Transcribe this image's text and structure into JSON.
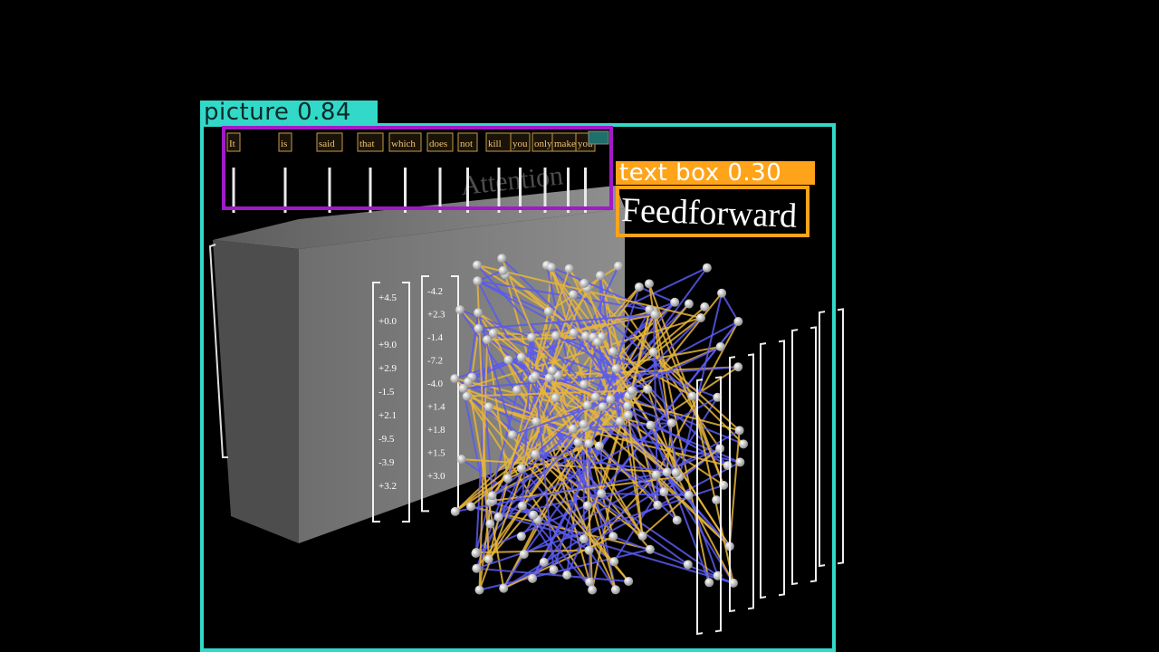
{
  "detections": [
    {
      "label": "picture 0.84",
      "color": "#32d9c8"
    },
    {
      "label": "text box 0.30",
      "color": "#ffa41a"
    }
  ],
  "scene": {
    "tokens": [
      "It",
      "is",
      "said",
      "that",
      "which",
      "does",
      "not",
      "kill",
      "you",
      "only",
      "makes",
      "you"
    ],
    "attention_label": "Attention",
    "feedforward_label": "Feedforward",
    "vector_values": [
      "+4.5",
      "+0.0",
      "+9.0",
      "+2.9",
      "-1.5",
      "+2.1",
      "-9.5",
      "-3.9",
      "+3.2"
    ],
    "vector_values_2": [
      "-4.2",
      "+2.3",
      "-1.4",
      "-7.2",
      "-4.0",
      "+1.4",
      "+1.8",
      "+1.5",
      "+3.0"
    ],
    "colors": {
      "edge_yellow": "#e8b63a",
      "edge_blue": "#5a5af0",
      "node": "#d8d8d8",
      "block": "#7d7d7d"
    }
  }
}
